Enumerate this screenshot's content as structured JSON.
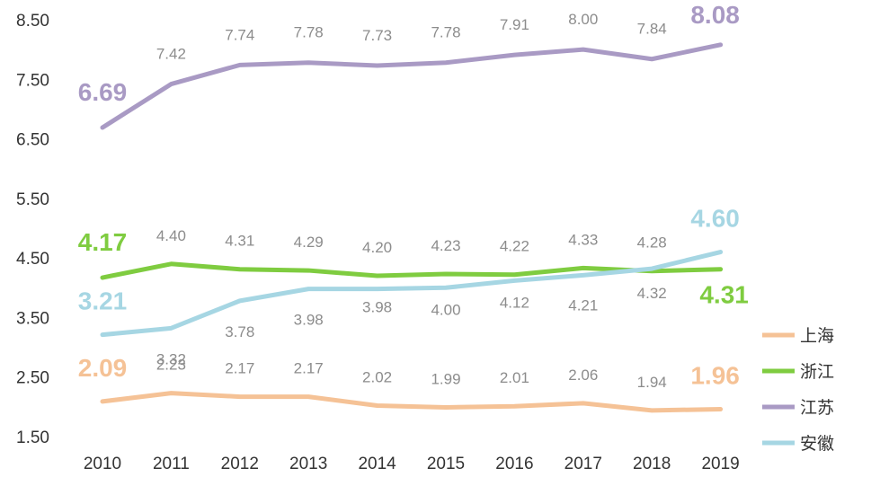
{
  "chart_data": {
    "type": "line",
    "x": [
      "2010",
      "2011",
      "2012",
      "2013",
      "2014",
      "2015",
      "2016",
      "2017",
      "2018",
      "2019"
    ],
    "y_ticks": [
      "8.50",
      "7.50",
      "6.50",
      "5.50",
      "4.50",
      "3.50",
      "2.50",
      "1.50"
    ],
    "ylim": [
      1.5,
      8.5
    ],
    "grid": false,
    "legend_position": "bottom-right",
    "series": [
      {
        "name": "上海",
        "color": "#f5c296",
        "values": [
          2.09,
          2.23,
          2.17,
          2.17,
          2.02,
          1.99,
          2.01,
          2.06,
          1.94,
          1.96
        ],
        "labels": [
          "2.09",
          "2.23",
          "2.17",
          "2.17",
          "2.02",
          "1.99",
          "2.01",
          "2.06",
          "1.94",
          "1.96"
        ]
      },
      {
        "name": "浙江",
        "color": "#7fcc40",
        "values": [
          4.17,
          4.4,
          4.31,
          4.29,
          4.2,
          4.23,
          4.22,
          4.33,
          4.28,
          4.31
        ],
        "labels": [
          "4.17",
          "4.40",
          "4.31",
          "4.29",
          "4.20",
          "4.23",
          "4.22",
          "4.33",
          "4.28",
          "4.31"
        ]
      },
      {
        "name": "江苏",
        "color": "#a99ac4",
        "values": [
          6.69,
          7.42,
          7.74,
          7.78,
          7.73,
          7.78,
          7.91,
          8.0,
          7.84,
          8.08
        ],
        "labels": [
          "6.69",
          "7.42",
          "7.74",
          "7.78",
          "7.73",
          "7.78",
          "7.91",
          "8.00",
          "7.84",
          "8.08"
        ]
      },
      {
        "name": "安徽",
        "color": "#a6d6e3",
        "values": [
          3.21,
          3.32,
          3.78,
          3.98,
          3.98,
          4.0,
          4.12,
          4.21,
          4.32,
          4.6
        ],
        "labels": [
          "3.21",
          "3.32",
          "3.78",
          "3.98",
          "3.98",
          "4.00",
          "4.12",
          "4.21",
          "4.32",
          "4.60"
        ]
      }
    ]
  }
}
